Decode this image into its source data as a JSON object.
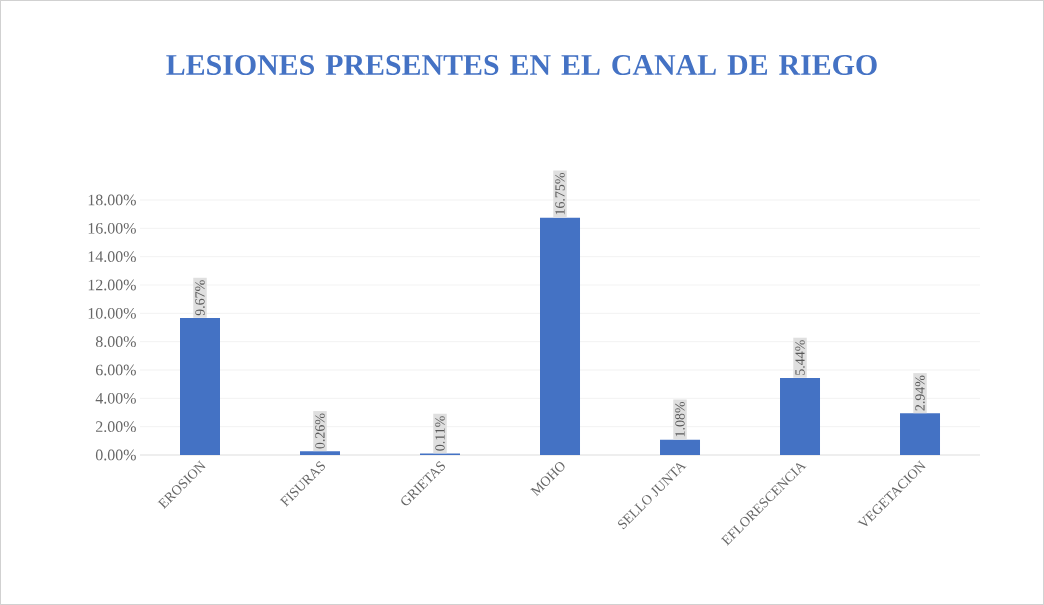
{
  "chart_data": {
    "type": "bar",
    "title": "LESIONES PRESENTES EN EL CANAL DE RIEGO",
    "categories": [
      "EROSION",
      "FISURAS",
      "GRIETAS",
      "MOHO",
      "SELLO JUNTA",
      "EFLORESCENCIA",
      "VEGETACION"
    ],
    "values": [
      9.67,
      0.26,
      0.11,
      16.75,
      1.08,
      5.44,
      2.94
    ],
    "value_labels": [
      "9.67%",
      "0.26%",
      "0.11%",
      "16.75%",
      "1.08%",
      "5.44%",
      "2.94%"
    ],
    "color": "#4472c4",
    "ylim": [
      0,
      18
    ],
    "yticks": [
      {
        "value": 0,
        "label": "0.00%"
      },
      {
        "value": 2,
        "label": "2.00%"
      },
      {
        "value": 4,
        "label": "4.00%"
      },
      {
        "value": 6,
        "label": "6.00%"
      },
      {
        "value": 8,
        "label": "8.00%"
      },
      {
        "value": 10,
        "label": "10.00%"
      },
      {
        "value": 12,
        "label": "12.00%"
      },
      {
        "value": 14,
        "label": "14.00%"
      },
      {
        "value": 16,
        "label": "16.00%"
      },
      {
        "value": 18,
        "label": "18.00%"
      }
    ],
    "grid": "y"
  }
}
